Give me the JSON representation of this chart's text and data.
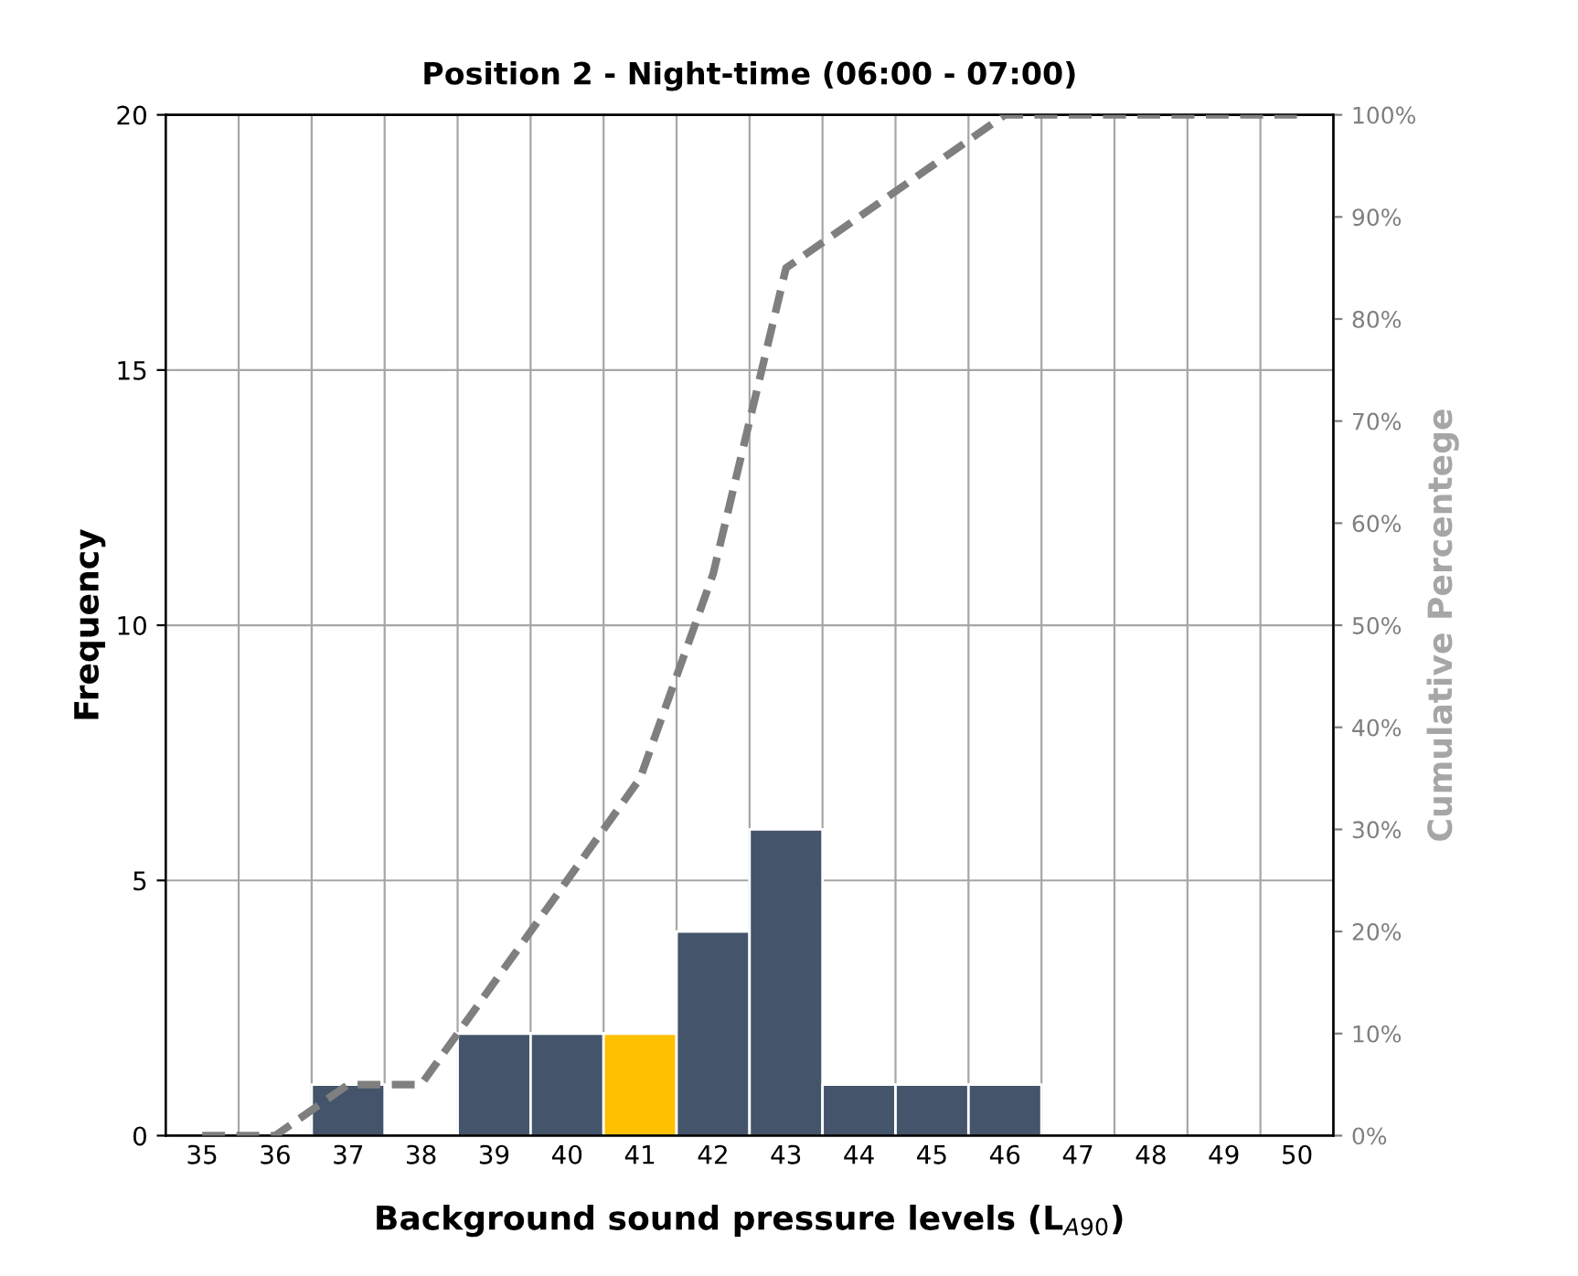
{
  "chart_data": {
    "type": "bar",
    "title": "Position 2 - Night-time (06:00 - 07:00)",
    "xlabel": "Background sound pressure levels (L$_{A90}$)",
    "ylabel": "Frequency",
    "y2label": "Cumulative Percentege",
    "categories": [
      "35",
      "36",
      "37",
      "38",
      "39",
      "40",
      "41",
      "42",
      "43",
      "44",
      "45",
      "46",
      "47",
      "48",
      "49",
      "50"
    ],
    "series": [
      {
        "colors": [
          "#44546a",
          "#44546a",
          "#44546a",
          "#44546a",
          "#44546a",
          "#44546a",
          "#ffc000",
          "#44546a",
          "#44546a",
          "#44546a",
          "#44546a",
          "#44546a",
          "#44546a",
          "#44546a",
          "#44546a",
          "#44546a"
        ],
        "values": [
          0,
          0,
          1,
          0,
          2,
          2,
          2,
          4,
          6,
          1,
          1,
          1,
          0,
          0,
          0,
          0
        ]
      },
      {
        "type": "line",
        "axis": "y2",
        "color": "#7f7f7f",
        "line_style": "dashed",
        "values": [
          0,
          0,
          5,
          5,
          15,
          25,
          35,
          55,
          85,
          90,
          95,
          100,
          100,
          100,
          100,
          100
        ]
      }
    ],
    "ylim": [
      0,
      20
    ],
    "yticks": [
      0,
      5,
      10,
      15,
      20
    ],
    "y2lim": [
      0,
      100
    ],
    "y2ticks": [
      {
        "value": 0,
        "label": "0%"
      },
      {
        "value": 10,
        "label": "10%"
      },
      {
        "value": 20,
        "label": "20%"
      },
      {
        "value": 30,
        "label": "30%"
      },
      {
        "value": 40,
        "label": "40%"
      },
      {
        "value": 50,
        "label": "50%"
      },
      {
        "value": 60,
        "label": "60%"
      },
      {
        "value": 70,
        "label": "70%"
      },
      {
        "value": 80,
        "label": "80%"
      },
      {
        "value": 90,
        "label": "90%"
      },
      {
        "value": 100,
        "label": "100%"
      }
    ],
    "grid": true
  }
}
